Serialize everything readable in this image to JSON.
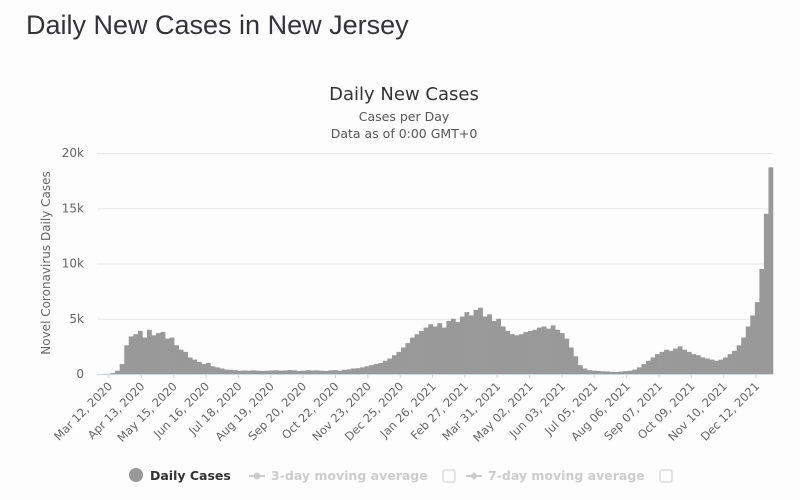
{
  "page": {
    "title": "Daily New Cases in New Jersey"
  },
  "chart_data": {
    "type": "bar",
    "title": "Daily New Cases",
    "subtitle": "Cases per Day",
    "subtitle2": "Data as of 0:00 GMT+0",
    "xlabel": "",
    "ylabel": "Novel Coronavirus Daily Cases",
    "ylim": [
      0,
      20000
    ],
    "yticks": [
      0,
      5000,
      10000,
      15000,
      20000
    ],
    "ytick_labels": [
      "0",
      "5k",
      "10k",
      "15k",
      "20k"
    ],
    "x_start_date": "2020-02-29",
    "x_end_date": "2021-12-27",
    "xtick_labels": [
      "Mar 12, 2020",
      "Apr 13, 2020",
      "May 15, 2020",
      "Jun 16, 2020",
      "Jul 18, 2020",
      "Aug 19, 2020",
      "Sep 20, 2020",
      "Oct 22, 2020",
      "Nov 23, 2020",
      "Dec 25, 2020",
      "Jan 26, 2021",
      "Feb 27, 2021",
      "Mar 31, 2021",
      "May 02, 2021",
      "Jun 03, 2021",
      "Jul 05, 2021",
      "Aug 06, 2021",
      "Sep 07, 2021",
      "Oct 09, 2021",
      "Nov 10, 2021",
      "Dec 12, 2021"
    ],
    "grid": true,
    "legend_position": "bottom",
    "series": [
      {
        "name": "Daily Cases",
        "color": "#999999",
        "visible": true,
        "weekly_values_note": "values listed per 4-day period starting at x_start_date",
        "values": [
          0,
          0,
          20,
          90,
          300,
          900,
          2600,
          3400,
          3600,
          3900,
          3300,
          4000,
          3500,
          3700,
          3800,
          3200,
          3300,
          2600,
          2200,
          2000,
          1500,
          1300,
          1100,
          900,
          1000,
          700,
          600,
          500,
          400,
          380,
          350,
          300,
          320,
          300,
          330,
          300,
          280,
          300,
          320,
          340,
          300,
          320,
          360,
          330,
          280,
          300,
          350,
          320,
          330,
          300,
          280,
          330,
          350,
          300,
          380,
          420,
          500,
          520,
          600,
          700,
          800,
          900,
          1000,
          1200,
          1400,
          1700,
          2000,
          2400,
          2800,
          3300,
          3600,
          3900,
          4200,
          4500,
          4300,
          4600,
          4200,
          4800,
          5000,
          4700,
          5200,
          5600,
          5300,
          5800,
          6000,
          5200,
          5400,
          4800,
          5000,
          4300,
          3900,
          3600,
          3500,
          3600,
          3800,
          3900,
          4000,
          4200,
          4300,
          4100,
          4400,
          4000,
          3700,
          3200,
          2400,
          1600,
          800,
          500,
          350,
          300,
          280,
          250,
          230,
          200,
          190,
          220,
          260,
          300,
          400,
          600,
          900,
          1200,
          1500,
          1800,
          2000,
          2200,
          2100,
          2300,
          2500,
          2200,
          2000,
          1800,
          1700,
          1500,
          1400,
          1300,
          1200,
          1300,
          1500,
          1800,
          2100,
          2600,
          3300,
          4300,
          5300,
          6500,
          9500,
          14500,
          18700
        ]
      },
      {
        "name": "3-day moving average",
        "color": "#cccccc",
        "visible": false
      },
      {
        "name": "7-day moving average",
        "color": "#cccccc",
        "visible": false
      }
    ]
  },
  "legend": {
    "items": [
      {
        "label": "Daily Cases",
        "active": true
      },
      {
        "label": "3-day moving average",
        "active": false
      },
      {
        "label": "7-day moving average",
        "active": false
      }
    ]
  }
}
